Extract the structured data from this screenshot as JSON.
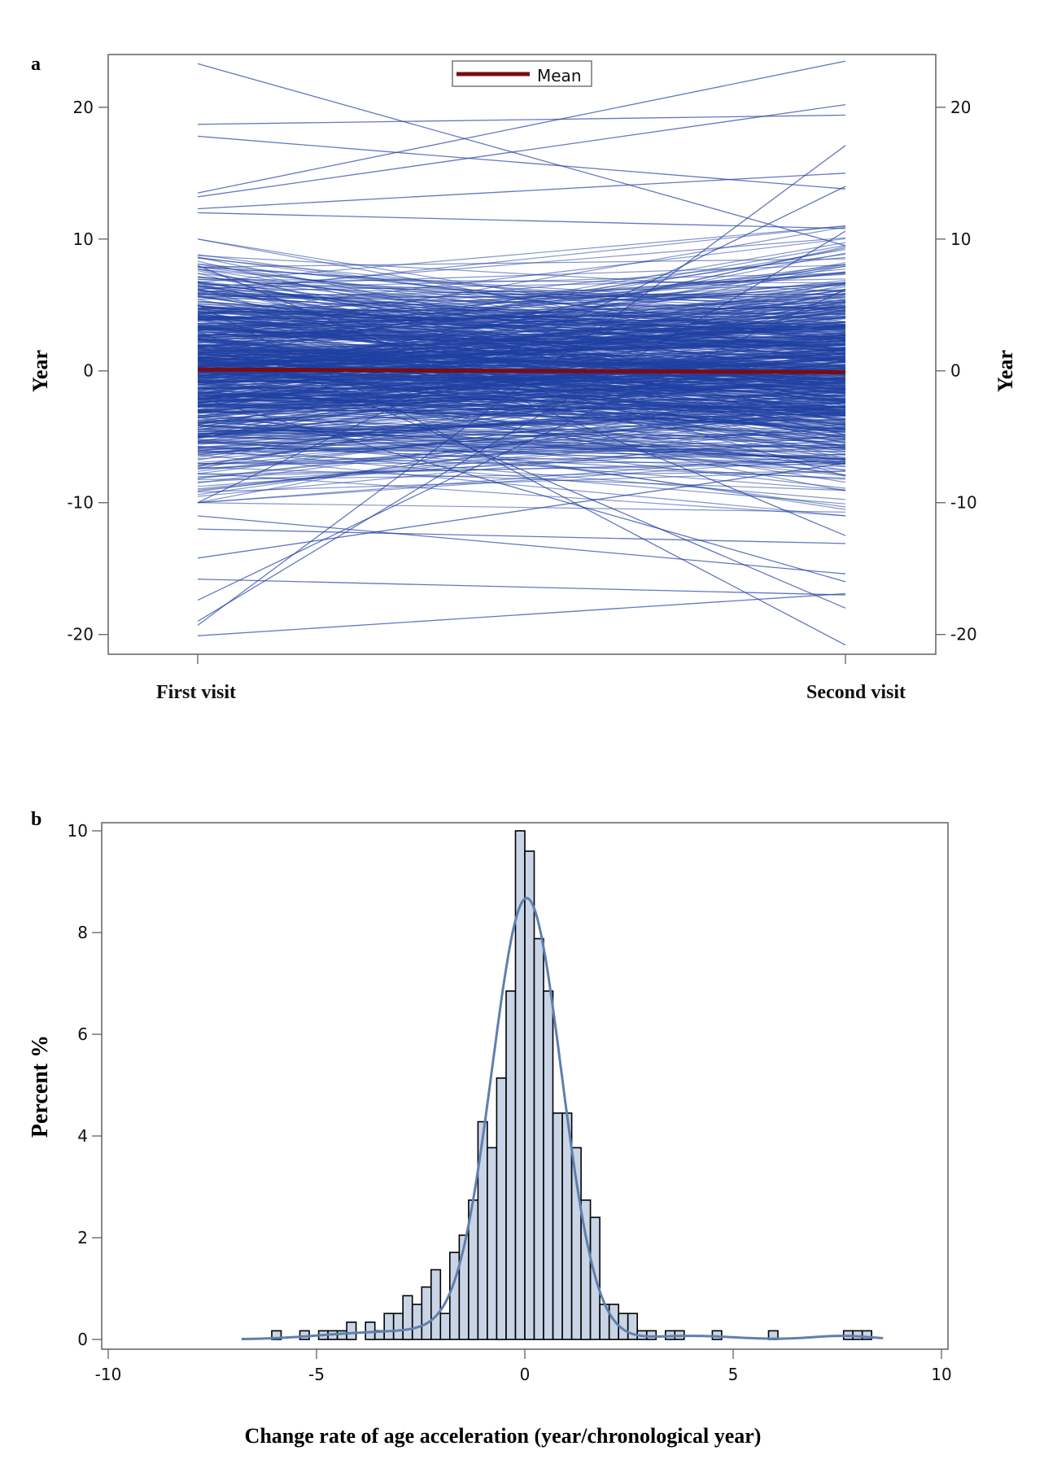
{
  "panel_a": {
    "label": "a",
    "y_axis_label": "Year",
    "y_axis_label_right": "Year",
    "legend_label": "Mean"
  },
  "panel_b": {
    "label": "b",
    "y_axis_label": "Percent %",
    "x_axis_label": "Change rate of age acceleration (year/chronological year)"
  },
  "colors": {
    "trajectory": "#1f3fa3",
    "mean": "#7a0c12",
    "bar_fill": "#c9d5e6",
    "bar_stroke": "#000000",
    "density": "#5f7fae",
    "frame": "#6b6b6b"
  },
  "chart_data": [
    {
      "type": "line",
      "categories": [
        "First visit",
        "Second visit"
      ],
      "ylim": [
        -21.5,
        24
      ],
      "yticks": [
        -20,
        -10,
        0,
        10,
        20
      ],
      "right_axis": true,
      "legend": {
        "position": "top-center",
        "entries": [
          "Mean"
        ]
      },
      "series": [
        {
          "name": "Mean",
          "values": [
            0.1,
            -0.1
          ]
        }
      ],
      "highlighted_trajectories": [
        [
          23.3,
          9.5
        ],
        [
          18.7,
          19.4
        ],
        [
          17.8,
          13.8
        ],
        [
          13.5,
          23.5
        ],
        [
          13.2,
          20.2
        ],
        [
          12.3,
          15.0
        ],
        [
          12.0,
          10.8
        ],
        [
          -19.3,
          17.1
        ],
        [
          -19.0,
          10.6
        ],
        [
          -20.1,
          -16.9
        ],
        [
          -17.4,
          6.2
        ],
        [
          -15.8,
          -17.0
        ],
        [
          -14.2,
          -7.0
        ],
        [
          5.0,
          -20.8
        ],
        [
          3.0,
          -18.0
        ],
        [
          -2.0,
          -16.0
        ],
        [
          -11.0,
          -15.4
        ],
        [
          -12.0,
          -13.1
        ],
        [
          8.0,
          -12.5
        ],
        [
          -10.0,
          14.0
        ]
      ],
      "n_trajectories_background": 650,
      "trajectory_value_range": [
        -10,
        10
      ]
    },
    {
      "type": "bar",
      "xlim": [
        -10,
        10
      ],
      "ylim": [
        0,
        10
      ],
      "xticks": [
        -10,
        -5,
        0,
        5,
        10
      ],
      "yticks": [
        0,
        2,
        4,
        6,
        8,
        10
      ],
      "bin_width": 0.225,
      "bin_start": -6.3,
      "values": [
        0,
        0.17,
        0,
        0,
        0.17,
        0,
        0.17,
        0.17,
        0.17,
        0.34,
        0,
        0.34,
        0.17,
        0.51,
        0.51,
        0.86,
        0.69,
        1.03,
        1.37,
        0.51,
        1.71,
        2.05,
        2.74,
        4.28,
        3.77,
        5.14,
        6.85,
        10.0,
        9.6,
        7.88,
        6.85,
        4.45,
        4.45,
        3.77,
        2.74,
        2.4,
        0.69,
        0.69,
        0.51,
        0.51,
        0.17,
        0.17,
        0,
        0.17,
        0.17,
        0,
        0,
        0,
        0.17,
        0,
        0,
        0,
        0,
        0,
        0.17,
        0,
        0,
        0,
        0,
        0,
        0,
        0,
        0.17,
        0.17,
        0.17
      ],
      "density_curve": true,
      "density_mean": 0.05,
      "density_sd": 0.83,
      "density_peak": 8.6
    }
  ]
}
